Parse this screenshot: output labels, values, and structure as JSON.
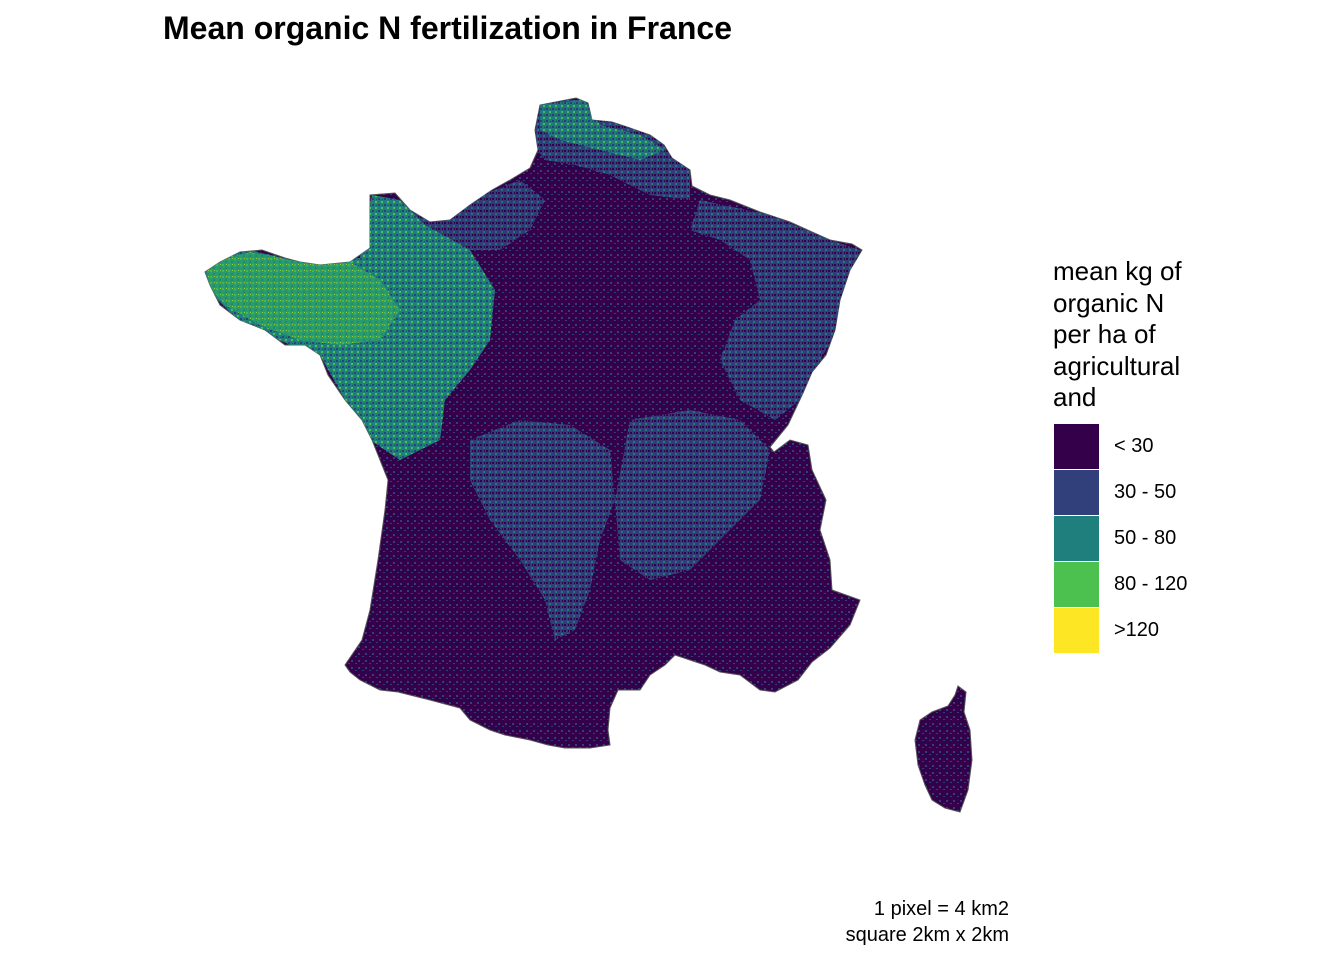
{
  "title": "Mean organic N fertilization in France",
  "legend": {
    "title_lines": [
      "mean kg of",
      "organic N",
      "per ha of",
      "agricultural",
      "and"
    ],
    "items": [
      {
        "label": "< 30",
        "color": "#35004a"
      },
      {
        "label": "30 - 50",
        "color": "#31407b"
      },
      {
        "label": "50 - 80",
        "color": "#1f7f7c"
      },
      {
        "label": "80 - 120",
        "color": "#4cc14f"
      },
      {
        "label": ">120",
        "color": "#fde725"
      }
    ]
  },
  "caption": [
    "1 pixel = 4 km2",
    "square 2km x 2km"
  ],
  "map": {
    "regions": [
      "France (mainland)",
      "Corsica"
    ],
    "dominant_class_by_area": [
      {
        "area": "Brittany",
        "class": "50 - 80",
        "speckle_class": "80 - 120"
      },
      {
        "area": "Normandy / Pays de la Loire",
        "class": "50 - 80"
      },
      {
        "area": "North / Nord-Pas-de-Calais",
        "class": "30 - 50"
      },
      {
        "area": "Massif Central / Auvergne",
        "class": "30 - 50"
      },
      {
        "area": "Alps / Rhône-Alpes",
        "class": "30 - 50"
      },
      {
        "area": "Lorraine / Vosges",
        "class": "30 - 50"
      },
      {
        "area": "Paris Basin, South-West, South-East, Corsica",
        "class": "< 30"
      }
    ]
  }
}
